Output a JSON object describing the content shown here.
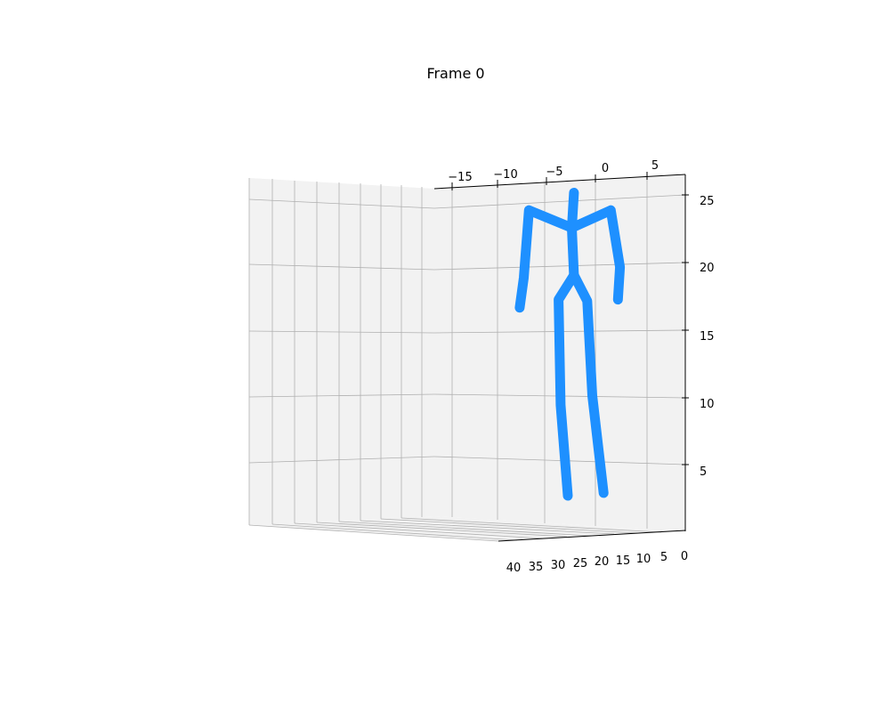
{
  "chart_data": {
    "type": "line3d",
    "title": "Frame 0",
    "xlabel": "",
    "ylabel": "",
    "zlabel": "",
    "x_ticks": [
      "−15",
      "−10",
      "−5",
      "0",
      "5"
    ],
    "depth_ticks": [
      "40",
      "35",
      "30",
      "25",
      "20",
      "15",
      "10",
      "5",
      "0"
    ],
    "z_ticks": [
      "5",
      "10",
      "15",
      "20",
      "25"
    ],
    "grid": true,
    "skeleton_color": "#1e90ff",
    "series": [
      {
        "values": [
          [
            -2.1,
            25.1
          ],
          [
            -2.3,
            22.5
          ],
          [
            -2.1,
            19.0
          ]
        ]
      },
      {
        "values": [
          [
            -2.3,
            22.5
          ],
          [
            -6.5,
            23.8
          ],
          [
            -7.0,
            18.8
          ],
          [
            -7.4,
            16.6
          ]
        ]
      },
      {
        "values": [
          [
            -2.3,
            22.5
          ],
          [
            1.5,
            23.8
          ],
          [
            2.4,
            19.6
          ],
          [
            2.2,
            17.2
          ]
        ]
      },
      {
        "values": [
          [
            -2.1,
            19.0
          ],
          [
            -3.6,
            17.2
          ],
          [
            -3.4,
            9.4
          ],
          [
            -2.7,
            2.7
          ]
        ]
      },
      {
        "values": [
          [
            -2.1,
            19.0
          ],
          [
            -0.8,
            17.1
          ],
          [
            -0.3,
            10.1
          ],
          [
            0.8,
            2.9
          ]
        ]
      }
    ]
  }
}
